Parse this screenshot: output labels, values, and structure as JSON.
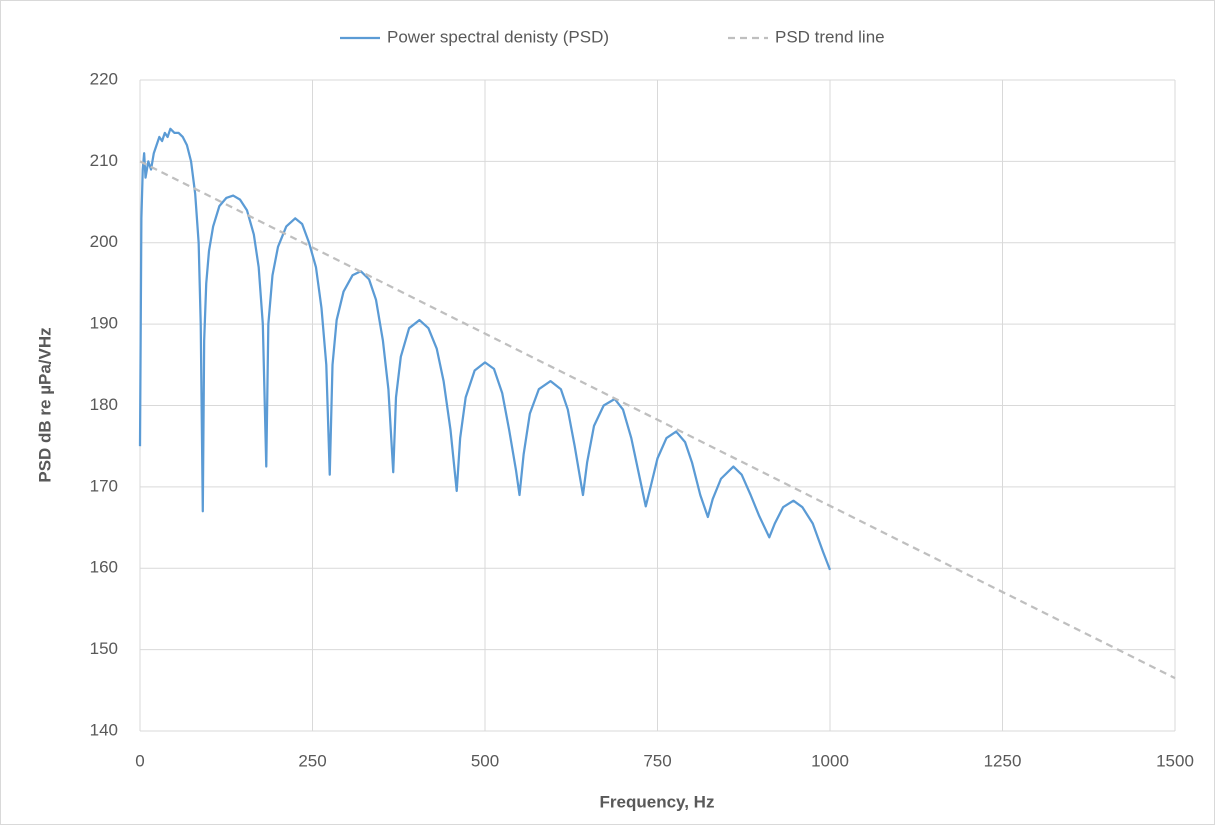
{
  "chart_data": {
    "type": "line",
    "xlabel": "Frequency, Hz",
    "ylabel": "PSD dB re µPa/VHz",
    "xlim": [
      0,
      1500
    ],
    "xticks": [
      0,
      250,
      500,
      750,
      1000,
      1250,
      1500
    ],
    "ylim": [
      140,
      220
    ],
    "yticks": [
      140,
      150,
      160,
      170,
      180,
      190,
      200,
      210,
      220
    ],
    "grid": true,
    "legend": "top",
    "series": [
      {
        "name": "Power spectral denisty (PSD)",
        "color": "#5b9bd5",
        "line_style": "solid",
        "x": [
          0,
          2,
          4,
          6,
          8,
          12,
          16,
          20,
          24,
          28,
          32,
          36,
          40,
          44,
          50,
          56,
          62,
          68,
          74,
          80,
          85,
          88,
          91,
          93,
          96,
          100,
          106,
          115,
          125,
          135,
          145,
          155,
          165,
          172,
          178,
          183,
          186,
          192,
          200,
          212,
          225,
          235,
          245,
          255,
          263,
          270,
          275,
          279,
          285,
          295,
          308,
          320,
          332,
          342,
          352,
          360,
          367,
          371,
          378,
          390,
          405,
          418,
          430,
          440,
          450,
          459,
          464,
          472,
          485,
          500,
          513,
          525,
          535,
          545,
          550,
          556,
          565,
          578,
          595,
          610,
          620,
          630,
          642,
          648,
          658,
          672,
          688,
          700,
          712,
          722,
          733,
          740,
          750,
          763,
          777,
          790,
          800,
          812,
          823,
          830,
          842,
          860,
          872,
          885,
          897,
          912,
          920,
          932,
          947,
          960,
          975,
          990,
          1000
        ],
        "values": [
          175,
          203,
          209,
          211,
          208,
          210,
          209,
          211,
          212,
          213,
          212.5,
          213.5,
          213,
          214,
          213.5,
          213.5,
          213,
          212,
          210,
          206,
          200,
          190,
          167,
          188,
          195,
          199,
          202,
          204.5,
          205.5,
          205.8,
          205.3,
          204,
          201,
          197,
          190,
          172.5,
          190,
          196,
          199.5,
          202,
          203,
          202.3,
          200,
          197,
          192,
          185,
          171.5,
          185,
          190.5,
          194,
          196,
          196.5,
          195.5,
          193,
          188,
          182,
          171.8,
          181,
          186,
          189.5,
          190.5,
          189.5,
          187,
          183,
          177,
          169.5,
          176,
          181,
          184.3,
          185.3,
          184.5,
          181.5,
          177,
          172,
          169,
          174,
          179,
          182,
          183,
          182,
          179.5,
          175,
          169,
          173,
          177.5,
          180,
          180.8,
          179.5,
          176,
          172,
          167.6,
          170,
          173.5,
          176,
          176.8,
          175.5,
          173,
          169,
          166.3,
          168.5,
          171,
          172.5,
          171.5,
          169,
          166.5,
          163.8,
          165.5,
          167.5,
          168.3,
          167.5,
          165.5,
          162,
          159.8
        ]
      },
      {
        "name": "PSD trend line",
        "color": "#bfbfbf",
        "line_style": "dashed",
        "x": [
          0,
          1500
        ],
        "values": [
          210,
          146.5
        ]
      }
    ]
  }
}
